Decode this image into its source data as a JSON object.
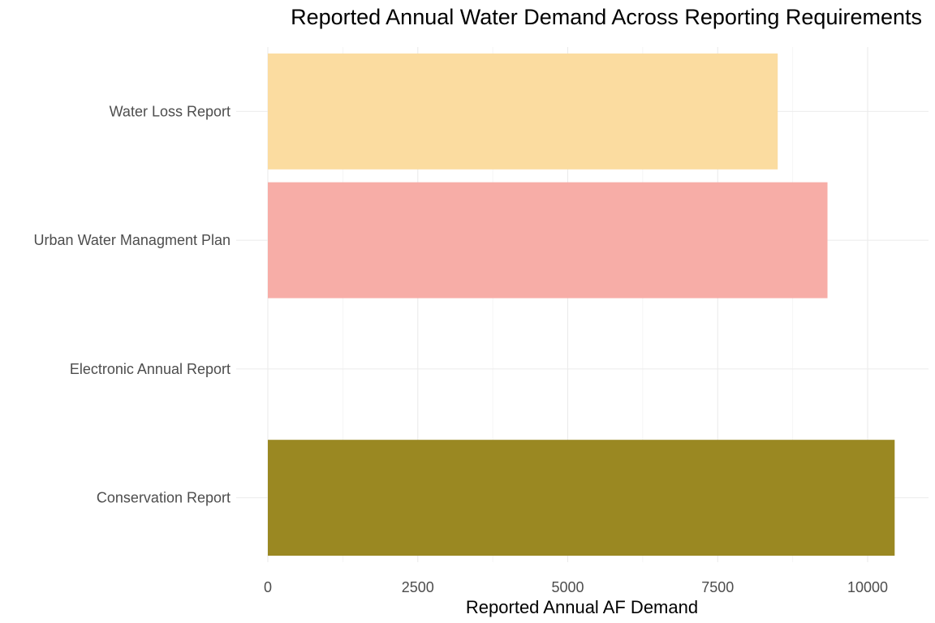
{
  "chart_data": {
    "type": "bar",
    "orientation": "horizontal",
    "title": "Reported Annual Water Demand Across Reporting Requirements",
    "xlabel": "Reported Annual AF Demand",
    "ylabel": "",
    "categories": [
      "Conservation Report",
      "Electronic Annual Report",
      "Urban Water Managment Plan",
      "Water Loss Report"
    ],
    "values": [
      10450,
      0,
      9330,
      8500
    ],
    "colors": [
      "#9a8822",
      null,
      "#f7ada7",
      "#fbdca0"
    ],
    "xlim": [
      0,
      10500
    ],
    "xticks": [
      0,
      2500,
      5000,
      7500,
      10000
    ],
    "xtick_labels": [
      "0",
      "2500",
      "5000",
      "7500",
      "10000"
    ],
    "grid": true,
    "legend": "none"
  }
}
